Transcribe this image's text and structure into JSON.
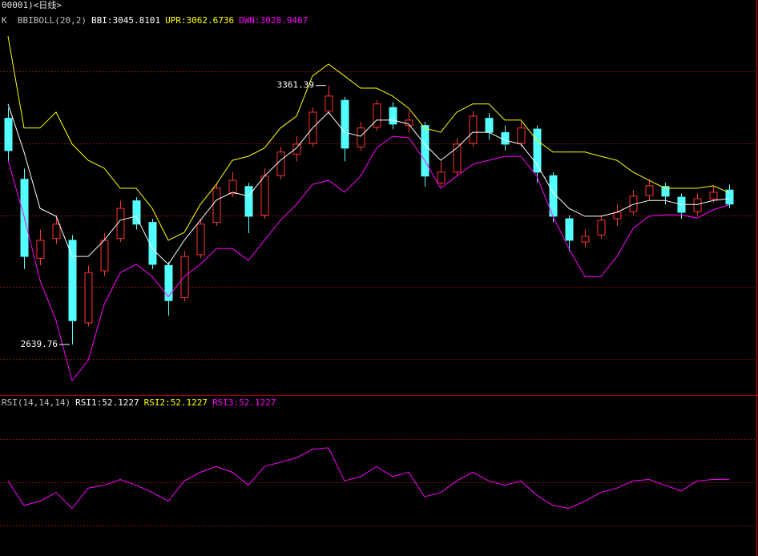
{
  "header": {
    "title": "00001)<日线>"
  },
  "chart_data": [
    {
      "type": "candlestick",
      "legend_title": "K  BBIBOLL(20,2)",
      "legend_color": "#c0c0c0",
      "open": [
        3270,
        3100,
        2880,
        2935,
        2930,
        2700,
        2845,
        2935,
        3040,
        2980,
        2860,
        2770,
        2890,
        2980,
        3060,
        3080,
        3000,
        3110,
        3170,
        3200,
        3290,
        3320,
        3190,
        3245,
        3300,
        3250,
        3250,
        3090,
        3120,
        3200,
        3270,
        3230,
        3200,
        3240,
        3110,
        2990,
        2925,
        2945,
        2990,
        3010,
        3055,
        3080,
        3050,
        3010,
        3045,
        3070
      ],
      "high": [
        3300,
        3130,
        2960,
        3000,
        2945,
        2860,
        2950,
        3040,
        3050,
        2990,
        2870,
        2900,
        2990,
        3090,
        3120,
        3090,
        3130,
        3190,
        3220,
        3300,
        3361.39,
        3330,
        3260,
        3320,
        3315,
        3290,
        3260,
        3150,
        3215,
        3290,
        3285,
        3250,
        3260,
        3250,
        3120,
        3000,
        2960,
        3000,
        3030,
        3070,
        3100,
        3090,
        3060,
        3060,
        3080,
        3085
      ],
      "low": [
        3150,
        2850,
        2860,
        2920,
        2639.76,
        2690,
        2830,
        2925,
        2960,
        2850,
        2720,
        2760,
        2880,
        2970,
        3050,
        2950,
        2990,
        3100,
        3150,
        3190,
        3280,
        3150,
        3180,
        3235,
        3240,
        3230,
        3080,
        3080,
        3110,
        3190,
        3210,
        3180,
        3190,
        3090,
        2980,
        2900,
        2910,
        2935,
        2970,
        3000,
        3040,
        3030,
        2990,
        3000,
        3035,
        3020
      ],
      "close": [
        3180,
        2885,
        2930,
        2975,
        2706,
        2840,
        2930,
        3019,
        2975,
        2863,
        2762,
        2885,
        2975,
        3075,
        3097,
        2997,
        3109,
        3176,
        3198,
        3287,
        3332,
        3187,
        3243,
        3310,
        3254,
        3265,
        3109,
        3120,
        3198,
        3276,
        3231,
        3198,
        3243,
        3120,
        2997,
        2930,
        2941,
        2986,
        3008,
        3053,
        3082,
        3053,
        3008,
        3046,
        3064,
        3031
      ],
      "up_color": "#ff3232",
      "down_color": "#54ffff",
      "series": [
        {
          "name": "BBI:3045.8101",
          "color": "#ffffff",
          "values": [
            3310,
            3176,
            3019,
            2997,
            2885,
            2885,
            2930,
            2986,
            2997,
            2907,
            2863,
            2930,
            2986,
            3042,
            3064,
            3053,
            3109,
            3153,
            3187,
            3243,
            3287,
            3231,
            3220,
            3265,
            3265,
            3254,
            3198,
            3153,
            3187,
            3231,
            3231,
            3209,
            3198,
            3142,
            3064,
            3019,
            2997,
            2997,
            3008,
            3030,
            3041,
            3041,
            3030,
            3030,
            3041,
            3046
          ]
        },
        {
          "name": "UPR:3062.6736",
          "color": "#ffff00",
          "values": [
            3499,
            3243,
            3243,
            3287,
            3198,
            3153,
            3131,
            3075,
            3075,
            3019,
            2930,
            2952,
            3030,
            3086,
            3153,
            3164,
            3187,
            3243,
            3276,
            3388,
            3421,
            3388,
            3354,
            3354,
            3332,
            3298,
            3243,
            3231,
            3287,
            3310,
            3310,
            3265,
            3265,
            3209,
            3176,
            3176,
            3176,
            3164,
            3153,
            3120,
            3097,
            3075,
            3075,
            3075,
            3082,
            3063
          ]
        },
        {
          "name": "DWN:3028.9467",
          "color": "#ff00ff",
          "values": [
            3153,
            2997,
            2818,
            2706,
            2539,
            2595,
            2751,
            2840,
            2863,
            2829,
            2773,
            2829,
            2863,
            2907,
            2907,
            2874,
            2930,
            2986,
            3030,
            3086,
            3097,
            3064,
            3109,
            3187,
            3220,
            3216,
            3153,
            3075,
            3109,
            3142,
            3153,
            3164,
            3164,
            3109,
            2997,
            2907,
            2829,
            2829,
            2885,
            2963,
            2997,
            3001,
            3001,
            2992,
            3015,
            3029
          ]
        }
      ],
      "ylim": [
        2499,
        3555
      ],
      "ygrid": [
        3400,
        3200,
        3000,
        2800,
        2600
      ],
      "grid_color": "#8a1010"
    },
    {
      "type": "line",
      "legend_title": "RSI(14,14,14)",
      "legend_color": "#c0c0c0",
      "series": [
        {
          "name": "RSI1:52.1227",
          "color": "#ffffff"
        },
        {
          "name": "RSI2:52.1227",
          "color": "#ffff00"
        },
        {
          "name": "RSI3:52.1227",
          "color": "#ff00ff",
          "values": [
            51,
            34,
            37,
            43,
            32,
            46,
            48,
            52,
            48,
            43,
            37,
            51,
            57,
            61,
            57,
            48,
            61,
            64,
            67,
            73,
            74,
            51,
            54,
            61,
            54,
            57,
            40,
            43,
            51,
            57,
            51,
            48,
            51,
            41,
            34,
            32,
            37,
            43,
            46,
            51,
            52,
            48,
            44,
            51,
            52,
            52.12
          ]
        }
      ],
      "ylim": [
        -1,
        110
      ],
      "ygrid": [
        80,
        50,
        20
      ],
      "grid_color": "#8a1010"
    }
  ]
}
